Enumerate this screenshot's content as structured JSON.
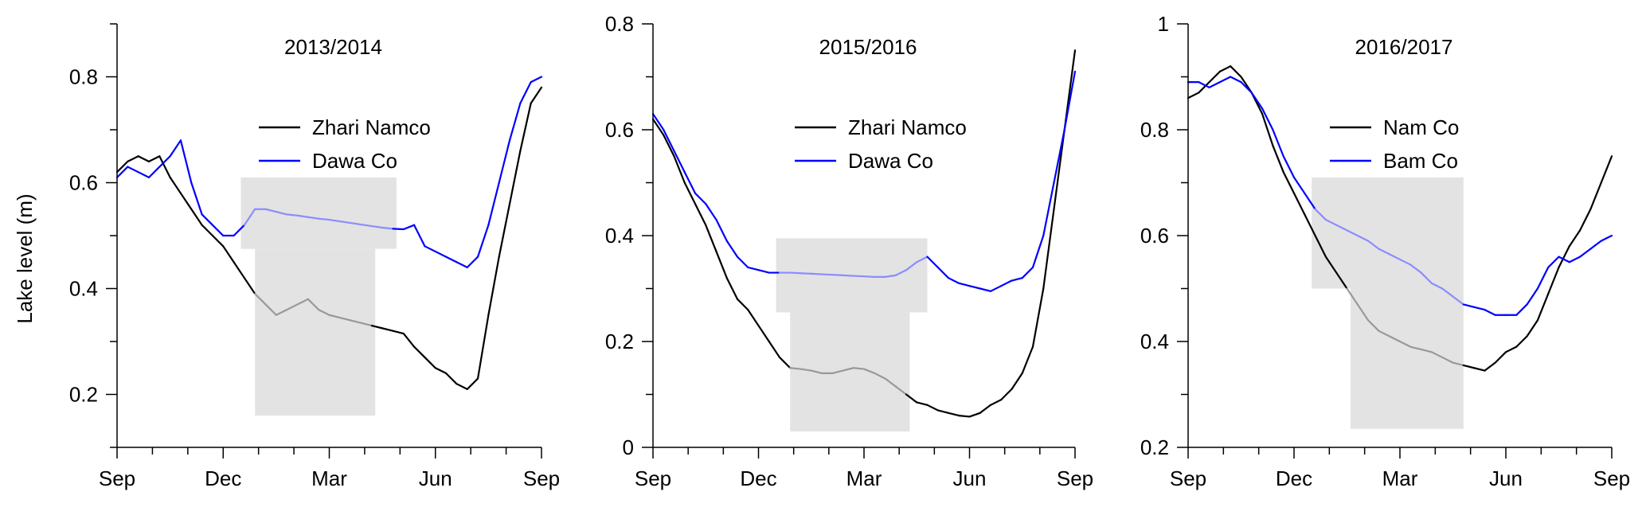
{
  "chart_data": [
    {
      "type": "line",
      "title": "2013/2014",
      "ylabel": "Lake level (m)",
      "xlim": [
        0,
        12
      ],
      "x_ticks": [
        0,
        3,
        6,
        9,
        12
      ],
      "x_tick_labels": [
        "Sep",
        "Dec",
        "Mar",
        "Jun",
        "Sep"
      ],
      "ylim": [
        0.1,
        0.9
      ],
      "y_ticks": [
        0.2,
        0.4,
        0.6,
        0.8
      ],
      "y_tick_labels": [
        "0.2",
        "0.4",
        "0.6",
        "0.8"
      ],
      "grid": false,
      "legend_position": "upper-middle",
      "shaded_regions": [
        {
          "series": "Dawa Co",
          "x": [
            3.5,
            7.9
          ],
          "y": [
            0.475,
            0.61
          ]
        },
        {
          "series": "Zhari Namco",
          "x": [
            3.9,
            7.3
          ],
          "y": [
            0.16,
            0.475
          ]
        }
      ],
      "series": [
        {
          "name": "Zhari Namco",
          "color": "#000000",
          "x": [
            0,
            0.3,
            0.6,
            0.9,
            1.2,
            1.5,
            1.8,
            2.1,
            2.4,
            2.7,
            3.0,
            3.3,
            3.6,
            3.9,
            4.2,
            4.5,
            4.8,
            5.1,
            5.4,
            5.7,
            6.0,
            6.3,
            6.6,
            6.9,
            7.2,
            7.5,
            7.8,
            8.1,
            8.4,
            8.7,
            9.0,
            9.3,
            9.6,
            9.9,
            10.2,
            10.5,
            10.8,
            11.1,
            11.4,
            11.7,
            12.0
          ],
          "y": [
            0.62,
            0.64,
            0.65,
            0.64,
            0.65,
            0.61,
            0.58,
            0.55,
            0.52,
            0.5,
            0.48,
            0.45,
            0.42,
            0.39,
            0.37,
            0.35,
            0.36,
            0.37,
            0.38,
            0.36,
            0.35,
            0.345,
            0.34,
            0.335,
            0.33,
            0.325,
            0.32,
            0.315,
            0.29,
            0.27,
            0.25,
            0.24,
            0.22,
            0.21,
            0.23,
            0.35,
            0.46,
            0.56,
            0.66,
            0.75,
            0.78
          ]
        },
        {
          "name": "Dawa Co",
          "color": "#0000ff",
          "x": [
            0,
            0.3,
            0.6,
            0.9,
            1.2,
            1.5,
            1.8,
            2.1,
            2.4,
            2.7,
            3.0,
            3.3,
            3.6,
            3.9,
            4.2,
            4.5,
            4.8,
            5.1,
            5.4,
            5.7,
            6.0,
            6.3,
            6.6,
            6.9,
            7.2,
            7.5,
            7.8,
            8.1,
            8.4,
            8.7,
            9.0,
            9.3,
            9.6,
            9.9,
            10.2,
            10.5,
            10.8,
            11.1,
            11.4,
            11.7,
            12.0
          ],
          "y": [
            0.61,
            0.63,
            0.62,
            0.61,
            0.63,
            0.65,
            0.68,
            0.6,
            0.54,
            0.52,
            0.5,
            0.5,
            0.52,
            0.55,
            0.55,
            0.545,
            0.54,
            0.538,
            0.535,
            0.532,
            0.53,
            0.527,
            0.524,
            0.521,
            0.518,
            0.515,
            0.513,
            0.512,
            0.52,
            0.48,
            0.47,
            0.46,
            0.45,
            0.44,
            0.46,
            0.52,
            0.6,
            0.68,
            0.75,
            0.79,
            0.8
          ]
        }
      ]
    },
    {
      "type": "line",
      "title": "2015/2016",
      "ylabel": "",
      "xlim": [
        0,
        12
      ],
      "x_ticks": [
        0,
        3,
        6,
        9,
        12
      ],
      "x_tick_labels": [
        "Sep",
        "Dec",
        "Mar",
        "Jun",
        "Sep"
      ],
      "ylim": [
        0,
        0.8
      ],
      "y_ticks": [
        0,
        0.2,
        0.4,
        0.6,
        0.8
      ],
      "y_tick_labels": [
        "0",
        "0.2",
        "0.4",
        "0.6",
        "0.8"
      ],
      "grid": false,
      "legend_position": "upper-middle",
      "shaded_regions": [
        {
          "series": "Dawa Co",
          "x": [
            3.5,
            7.8
          ],
          "y": [
            0.255,
            0.395
          ]
        },
        {
          "series": "Zhari Namco",
          "x": [
            3.9,
            7.3
          ],
          "y": [
            0.03,
            0.255
          ]
        }
      ],
      "series": [
        {
          "name": "Zhari Namco",
          "color": "#000000",
          "x": [
            0,
            0.3,
            0.6,
            0.9,
            1.2,
            1.5,
            1.8,
            2.1,
            2.4,
            2.7,
            3.0,
            3.3,
            3.6,
            3.9,
            4.2,
            4.5,
            4.8,
            5.1,
            5.4,
            5.7,
            6.0,
            6.3,
            6.6,
            6.9,
            7.2,
            7.5,
            7.8,
            8.1,
            8.4,
            8.7,
            9.0,
            9.3,
            9.6,
            9.9,
            10.2,
            10.5,
            10.8,
            11.1,
            11.4,
            11.7,
            12.0
          ],
          "y": [
            0.62,
            0.59,
            0.55,
            0.5,
            0.46,
            0.42,
            0.37,
            0.32,
            0.28,
            0.26,
            0.23,
            0.2,
            0.17,
            0.15,
            0.148,
            0.145,
            0.14,
            0.14,
            0.145,
            0.15,
            0.148,
            0.14,
            0.13,
            0.115,
            0.1,
            0.085,
            0.08,
            0.07,
            0.065,
            0.06,
            0.058,
            0.065,
            0.08,
            0.09,
            0.11,
            0.14,
            0.19,
            0.3,
            0.45,
            0.6,
            0.75
          ]
        },
        {
          "name": "Dawa Co",
          "color": "#0000ff",
          "x": [
            0,
            0.3,
            0.6,
            0.9,
            1.2,
            1.5,
            1.8,
            2.1,
            2.4,
            2.7,
            3.0,
            3.3,
            3.6,
            3.9,
            4.2,
            4.5,
            4.8,
            5.1,
            5.4,
            5.7,
            6.0,
            6.3,
            6.6,
            6.9,
            7.2,
            7.5,
            7.8,
            8.1,
            8.4,
            8.7,
            9.0,
            9.3,
            9.6,
            9.9,
            10.2,
            10.5,
            10.8,
            11.1,
            11.4,
            11.7,
            12.0
          ],
          "y": [
            0.63,
            0.6,
            0.56,
            0.52,
            0.48,
            0.46,
            0.43,
            0.39,
            0.36,
            0.34,
            0.335,
            0.33,
            0.33,
            0.33,
            0.329,
            0.328,
            0.327,
            0.326,
            0.325,
            0.324,
            0.323,
            0.322,
            0.322,
            0.325,
            0.335,
            0.35,
            0.36,
            0.34,
            0.32,
            0.31,
            0.305,
            0.3,
            0.295,
            0.305,
            0.315,
            0.32,
            0.34,
            0.4,
            0.5,
            0.6,
            0.71
          ]
        }
      ]
    },
    {
      "type": "line",
      "title": "2016/2017",
      "ylabel": "",
      "xlim": [
        0,
        12
      ],
      "x_ticks": [
        0,
        3,
        6,
        9,
        12
      ],
      "x_tick_labels": [
        "Sep",
        "Dec",
        "Mar",
        "Jun",
        "Sep"
      ],
      "ylim": [
        0.2,
        1.0
      ],
      "y_ticks": [
        0.2,
        0.4,
        0.6,
        0.8,
        1.0
      ],
      "y_tick_labels": [
        "0.2",
        "0.4",
        "0.6",
        "0.8",
        "1"
      ],
      "grid": false,
      "legend_position": "upper-middle",
      "shaded_regions": [
        {
          "series": "Bam Co",
          "x": [
            3.5,
            7.8
          ],
          "y": [
            0.5,
            0.71
          ]
        },
        {
          "series": "Nam Co",
          "x": [
            4.6,
            7.8
          ],
          "y": [
            0.235,
            0.5
          ]
        }
      ],
      "series": [
        {
          "name": "Nam Co",
          "color": "#000000",
          "x": [
            0,
            0.3,
            0.6,
            0.9,
            1.2,
            1.5,
            1.8,
            2.1,
            2.4,
            2.7,
            3.0,
            3.3,
            3.6,
            3.9,
            4.2,
            4.5,
            4.8,
            5.1,
            5.4,
            5.7,
            6.0,
            6.3,
            6.6,
            6.9,
            7.2,
            7.5,
            7.8,
            8.1,
            8.4,
            8.7,
            9.0,
            9.3,
            9.6,
            9.9,
            10.2,
            10.5,
            10.8,
            11.1,
            11.4,
            11.7,
            12.0
          ],
          "y": [
            0.86,
            0.87,
            0.89,
            0.91,
            0.92,
            0.9,
            0.87,
            0.83,
            0.77,
            0.72,
            0.68,
            0.64,
            0.6,
            0.56,
            0.53,
            0.5,
            0.47,
            0.44,
            0.42,
            0.41,
            0.4,
            0.39,
            0.385,
            0.38,
            0.37,
            0.36,
            0.355,
            0.35,
            0.345,
            0.36,
            0.38,
            0.39,
            0.41,
            0.44,
            0.49,
            0.54,
            0.58,
            0.61,
            0.65,
            0.7,
            0.75
          ]
        },
        {
          "name": "Bam Co",
          "color": "#0000ff",
          "x": [
            0,
            0.3,
            0.6,
            0.9,
            1.2,
            1.5,
            1.8,
            2.1,
            2.4,
            2.7,
            3.0,
            3.3,
            3.6,
            3.9,
            4.2,
            4.5,
            4.8,
            5.1,
            5.4,
            5.7,
            6.0,
            6.3,
            6.6,
            6.9,
            7.2,
            7.5,
            7.8,
            8.1,
            8.4,
            8.7,
            9.0,
            9.3,
            9.6,
            9.9,
            10.2,
            10.5,
            10.8,
            11.1,
            11.4,
            11.7,
            12.0
          ],
          "y": [
            0.89,
            0.89,
            0.88,
            0.89,
            0.9,
            0.89,
            0.87,
            0.84,
            0.8,
            0.75,
            0.71,
            0.68,
            0.65,
            0.63,
            0.62,
            0.61,
            0.6,
            0.59,
            0.575,
            0.565,
            0.555,
            0.545,
            0.53,
            0.51,
            0.5,
            0.485,
            0.47,
            0.465,
            0.46,
            0.45,
            0.45,
            0.45,
            0.47,
            0.5,
            0.54,
            0.56,
            0.55,
            0.56,
            0.575,
            0.59,
            0.6
          ]
        }
      ]
    }
  ]
}
